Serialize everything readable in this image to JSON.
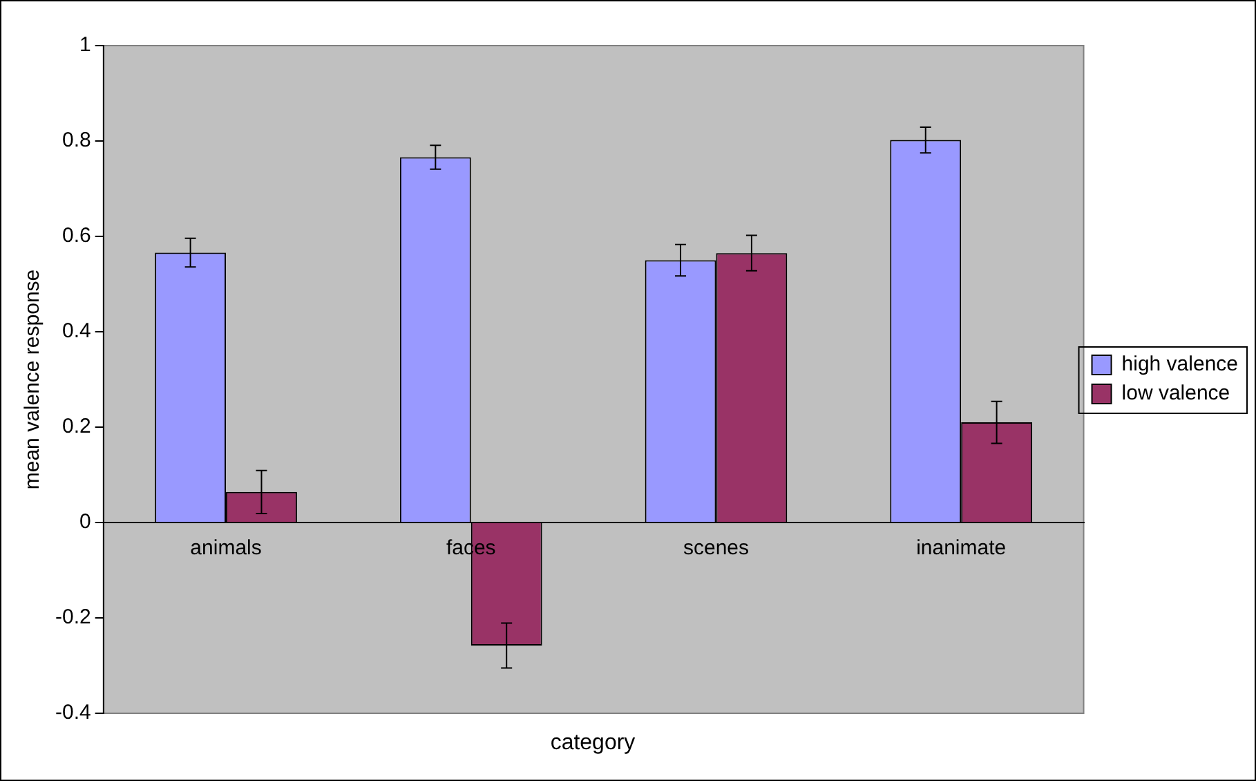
{
  "chart_data": {
    "type": "bar",
    "xlabel": "category",
    "ylabel": "mean valence response",
    "categories": [
      "animals",
      "faces",
      "scenes",
      "inanimate"
    ],
    "series": [
      {
        "name": "high valence",
        "color": "#9999ff",
        "values": [
          0.566,
          0.766,
          0.55,
          0.802
        ],
        "errors": [
          0.03,
          0.025,
          0.033,
          0.027
        ]
      },
      {
        "name": "low valence",
        "color": "#993366",
        "values": [
          0.064,
          -0.258,
          0.565,
          0.21
        ],
        "errors": [
          0.045,
          0.047,
          0.037,
          0.044
        ]
      }
    ],
    "ylim": [
      -0.4,
      1
    ],
    "yticks": [
      -0.4,
      -0.2,
      0,
      0.2,
      0.4,
      0.6,
      0.8,
      1
    ],
    "grid": false,
    "legend": "right"
  }
}
